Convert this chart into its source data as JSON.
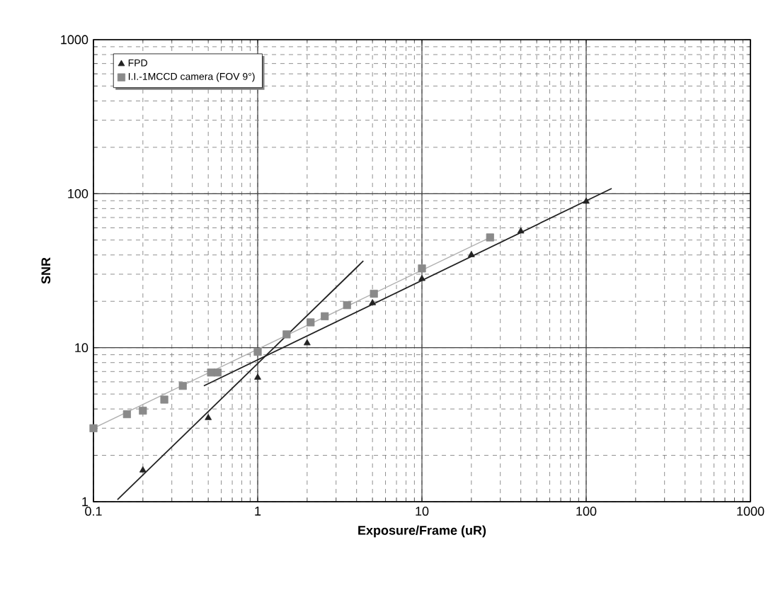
{
  "chart_data": {
    "type": "scatter",
    "xlabel": "Exposure/Frame (uR)",
    "ylabel": "SNR",
    "log": "xy",
    "xlim": [
      0.1,
      1000
    ],
    "ylim": [
      1,
      1000
    ],
    "xticks": [
      0.1,
      1,
      10,
      100,
      1000
    ],
    "yticks": [
      1,
      10,
      100,
      1000
    ],
    "grid": true,
    "legend": "top left",
    "series": [
      {
        "name": "FPD",
        "marker": "triangle",
        "color": "#222222",
        "x": [
          0.2,
          0.5,
          1,
          2,
          5,
          10,
          20,
          40,
          100
        ],
        "values": [
          1.6,
          3.5,
          6.4,
          10.7,
          19.5,
          28,
          40,
          57,
          89
        ]
      },
      {
        "name": "I.I.-1MCCD camera (FOV 9°)",
        "marker": "square",
        "color": "#8a8a8a",
        "x": [
          0.1,
          0.16,
          0.2,
          0.27,
          0.35,
          0.52,
          0.57,
          1,
          1.5,
          2.1,
          2.56,
          3.5,
          5.1,
          10,
          26
        ],
        "values": [
          3,
          3.7,
          3.9,
          4.6,
          5.65,
          6.9,
          6.9,
          9.4,
          12.2,
          14.6,
          16,
          18.9,
          22.4,
          32.7,
          52
        ]
      },
      {
        "type": "line",
        "color": "#222222",
        "x": [
          0.14,
          4.4
        ],
        "values": [
          1.03,
          36.6
        ]
      },
      {
        "type": "line",
        "color": "#222222",
        "x": [
          0.47,
          143
        ],
        "values": [
          5.65,
          108
        ]
      },
      {
        "type": "line",
        "color": "#b0b0b0",
        "x": [
          0.1,
          26
        ],
        "values": [
          3,
          52
        ]
      }
    ]
  }
}
